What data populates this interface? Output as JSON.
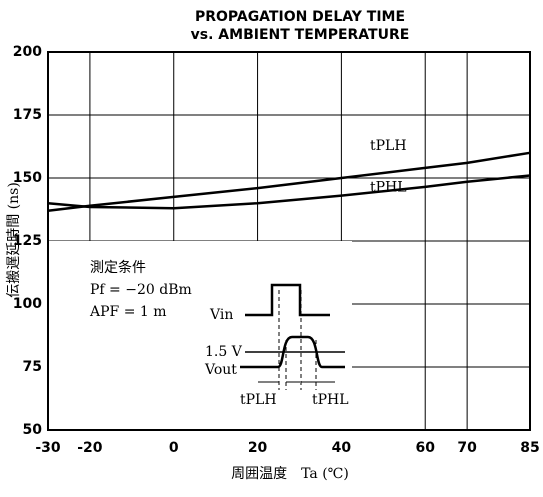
{
  "chart_data": {
    "type": "line",
    "title": "PROPAGATION DELAY TIME",
    "subtitle": "vs. AMBIENT TEMPERATURE",
    "x_label": "周囲温度　Ta (℃)",
    "y_label": "伝搬遅延時間 (ns)",
    "x": [
      -30,
      -20,
      0,
      20,
      40,
      60,
      70,
      85
    ],
    "series": [
      {
        "name": "tPLH",
        "color": "#000000",
        "values": [
          137,
          139,
          142.5,
          146,
          150,
          154,
          156,
          160
        ]
      },
      {
        "name": "tPHL",
        "color": "#000000",
        "values": [
          140,
          138.5,
          138,
          140,
          143,
          146.5,
          148.5,
          151
        ]
      }
    ],
    "xlim": [
      -30,
      85
    ],
    "xticks": [
      -30,
      -20,
      0,
      20,
      40,
      60,
      70,
      85
    ],
    "ylim": [
      50,
      200
    ],
    "yticks": [
      50,
      75,
      100,
      125,
      150,
      175,
      200
    ],
    "grid": true,
    "annotations": [
      "測定条件",
      "Pf = −20 dBm",
      "APF = 1 m",
      "Vin",
      "1.5 V",
      "Vout",
      "tPLH",
      "tPHL"
    ]
  }
}
